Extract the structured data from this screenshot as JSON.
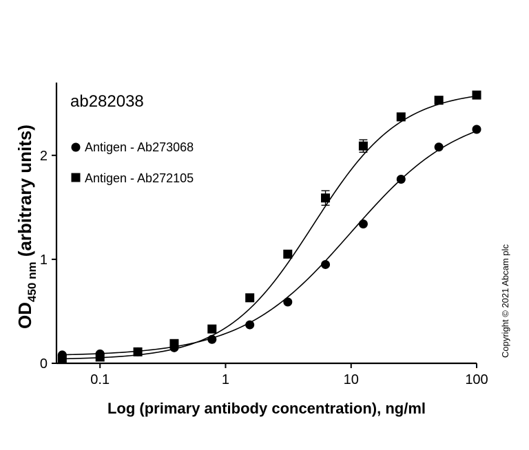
{
  "chart_data": {
    "type": "scatter",
    "title": "ab282038",
    "xlabel": "Log (primary antibody concentration), ng/ml",
    "ylabel_main": "OD",
    "ylabel_sub": "450 nm",
    "ylabel_rest": " (arbitrary units)",
    "x_scale": "log",
    "xlim": [
      0.045,
      100
    ],
    "ylim": [
      0,
      2.7
    ],
    "x_ticks": [
      0.1,
      1,
      10,
      100
    ],
    "x_tick_labels": [
      "0.1",
      "1",
      "10",
      "100"
    ],
    "y_ticks": [
      0,
      1,
      2
    ],
    "y_tick_labels": [
      "0",
      "1",
      "2"
    ],
    "grid": false,
    "legend_position": "upper-left",
    "copyright": "Copyright © 2021 Abcam plc",
    "series": [
      {
        "name": "Antigen - Ab273068",
        "marker": "circle",
        "x": [
          0.05,
          0.1,
          0.2,
          0.39,
          0.78,
          1.56,
          3.13,
          6.25,
          12.5,
          25,
          50,
          100
        ],
        "y": [
          0.08,
          0.09,
          0.11,
          0.15,
          0.23,
          0.37,
          0.59,
          0.95,
          1.34,
          1.77,
          2.08,
          2.25
        ],
        "err": [
          0,
          0,
          0,
          0,
          0,
          0,
          0,
          0,
          0,
          0,
          0,
          0
        ],
        "fit": {
          "bottom": 0.07,
          "top": 2.45,
          "ec50": 10.0,
          "hill": 1.0
        }
      },
      {
        "name": "Antigen - Ab272105",
        "marker": "square",
        "x": [
          0.05,
          0.1,
          0.2,
          0.39,
          0.78,
          1.56,
          3.13,
          6.25,
          12.5,
          25,
          50,
          100
        ],
        "y": [
          0.04,
          0.06,
          0.11,
          0.19,
          0.33,
          0.63,
          1.05,
          1.59,
          2.09,
          2.37,
          2.53,
          2.58
        ],
        "err": [
          0,
          0,
          0,
          0,
          0,
          0,
          0,
          0.07,
          0.06,
          0,
          0,
          0
        ],
        "fit": {
          "bottom": 0.035,
          "top": 2.63,
          "ec50": 5.0,
          "hill": 1.25
        }
      }
    ]
  }
}
